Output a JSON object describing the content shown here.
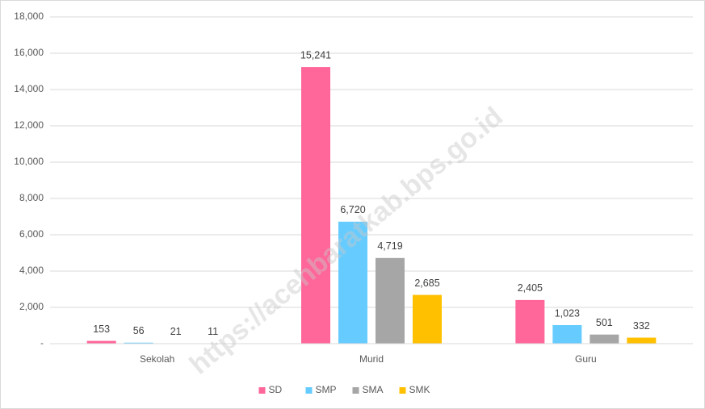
{
  "chart_data": {
    "type": "bar",
    "categories": [
      "Sekolah",
      "Murid",
      "Guru"
    ],
    "series": [
      {
        "name": "SD",
        "color": "#ff6699",
        "values": [
          153,
          15241,
          2405
        ],
        "value_labels": [
          "153",
          "15,241",
          "2,405"
        ]
      },
      {
        "name": "SMP",
        "color": "#66ccff",
        "values": [
          56,
          6720,
          1023
        ],
        "value_labels": [
          "56",
          "6,720",
          "1,023"
        ]
      },
      {
        "name": "SMA",
        "color": "#a6a6a6",
        "values": [
          21,
          4719,
          501
        ],
        "value_labels": [
          "21",
          "4,719",
          "501"
        ]
      },
      {
        "name": "SMK",
        "color": "#ffc000",
        "values": [
          11,
          2685,
          332
        ],
        "value_labels": [
          "11",
          "2,685",
          "332"
        ]
      }
    ],
    "ylim": [
      0,
      18000
    ],
    "yticks": [
      {
        "value": 0,
        "label": "-"
      },
      {
        "value": 2000,
        "label": "2,000"
      },
      {
        "value": 4000,
        "label": "4,000"
      },
      {
        "value": 6000,
        "label": "6,000"
      },
      {
        "value": 8000,
        "label": "8,000"
      },
      {
        "value": 10000,
        "label": "10,000"
      },
      {
        "value": 12000,
        "label": "12,000"
      },
      {
        "value": 14000,
        "label": "14,000"
      },
      {
        "value": 16000,
        "label": "16,000"
      },
      {
        "value": 18000,
        "label": "18,000"
      }
    ],
    "grid": true,
    "legend": "bottom",
    "watermark": "https://acehbaratkab.bps.go.id"
  }
}
